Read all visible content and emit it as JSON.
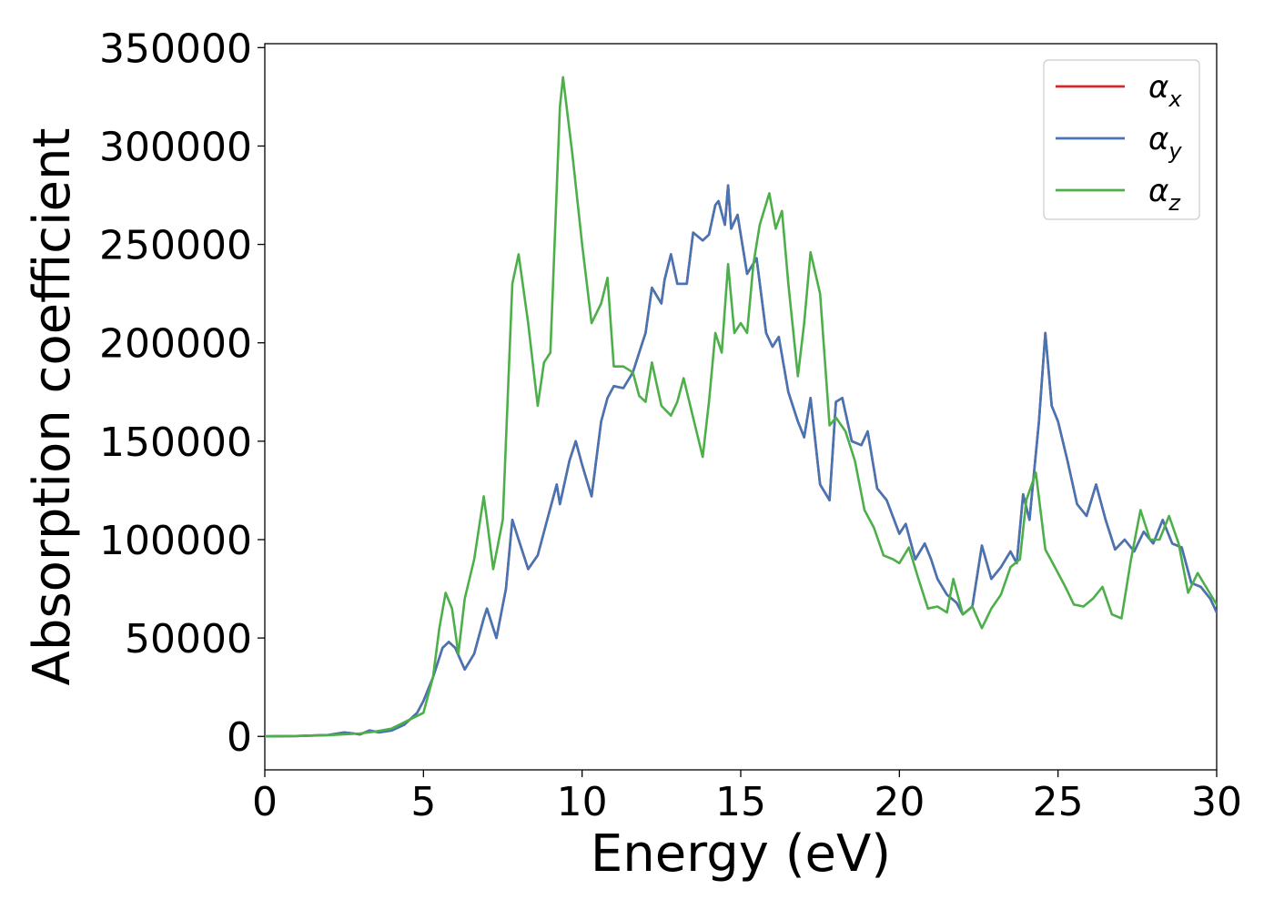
{
  "chart_data": {
    "type": "line",
    "xlabel": "Energy (eV)",
    "ylabel": "Absorption coefficient",
    "xlim": [
      0,
      30
    ],
    "ylim": [
      -17000,
      352000
    ],
    "xticks": [
      0,
      5,
      10,
      15,
      20,
      25,
      30
    ],
    "yticks": [
      0,
      50000,
      100000,
      150000,
      200000,
      250000,
      300000,
      350000
    ],
    "grid": false,
    "legend_position": "top-right",
    "series": [
      {
        "name": "α",
        "subscript": "x",
        "color": "#d62728",
        "x": [
          0,
          1,
          2,
          2.5,
          2.8,
          3.0,
          3.3,
          3.6,
          4.0,
          4.4,
          4.8,
          5.0,
          5.3,
          5.6,
          5.8,
          6.0,
          6.3,
          6.6,
          6.9,
          7.0,
          7.3,
          7.6,
          7.8,
          8.0,
          8.3,
          8.6,
          8.9,
          9.2,
          9.3,
          9.6,
          9.8,
          10.0,
          10.3,
          10.6,
          10.8,
          11.0,
          11.3,
          11.6,
          11.8,
          12.0,
          12.2,
          12.5,
          12.6,
          12.8,
          13.0,
          13.3,
          13.5,
          13.8,
          14.0,
          14.2,
          14.3,
          14.5,
          14.6,
          14.7,
          14.9,
          15.0,
          15.2,
          15.5,
          15.8,
          16.0,
          16.2,
          16.5,
          16.8,
          17.0,
          17.2,
          17.5,
          17.8,
          18.0,
          18.2,
          18.5,
          18.8,
          19.0,
          19.3,
          19.6,
          20.0,
          20.2,
          20.5,
          20.8,
          21.0,
          21.2,
          21.5,
          21.8,
          22.0,
          22.3,
          22.6,
          22.9,
          23.2,
          23.5,
          23.7,
          23.9,
          24.1,
          24.4,
          24.6,
          24.8,
          25.0,
          25.3,
          25.6,
          25.9,
          26.2,
          26.5,
          26.8,
          27.1,
          27.4,
          27.7,
          28.0,
          28.3,
          28.6,
          28.9,
          29.2,
          29.5,
          29.8,
          30.0
        ],
        "y": [
          0,
          200,
          700,
          2000,
          1500,
          1000,
          3000,
          2000,
          3000,
          6000,
          12000,
          18000,
          30000,
          45000,
          48000,
          45000,
          34000,
          42000,
          60000,
          65000,
          50000,
          75000,
          110000,
          100000,
          85000,
          92000,
          110000,
          128000,
          118000,
          140000,
          150000,
          138000,
          122000,
          160000,
          172000,
          178000,
          177000,
          185000,
          195000,
          205000,
          228000,
          220000,
          232000,
          245000,
          230000,
          230000,
          256000,
          252000,
          255000,
          270000,
          272000,
          260000,
          280000,
          258000,
          265000,
          255000,
          235000,
          243000,
          205000,
          198000,
          203000,
          175000,
          160000,
          152000,
          172000,
          128000,
          120000,
          170000,
          172000,
          150000,
          148000,
          155000,
          126000,
          120000,
          103000,
          108000,
          90000,
          98000,
          90000,
          80000,
          72000,
          68000,
          62000,
          66000,
          97000,
          80000,
          86000,
          94000,
          88000,
          123000,
          110000,
          160000,
          205000,
          168000,
          160000,
          140000,
          118000,
          112000,
          128000,
          110000,
          95000,
          100000,
          94000,
          104000,
          98000,
          110000,
          98000,
          96000,
          78000,
          76000,
          70000,
          63000
        ]
      },
      {
        "name": "α",
        "subscript": "y",
        "color": "#4575b4",
        "x": [
          0,
          1,
          2,
          2.5,
          2.8,
          3.0,
          3.3,
          3.6,
          4.0,
          4.4,
          4.8,
          5.0,
          5.3,
          5.6,
          5.8,
          6.0,
          6.3,
          6.6,
          6.9,
          7.0,
          7.3,
          7.6,
          7.8,
          8.0,
          8.3,
          8.6,
          8.9,
          9.2,
          9.3,
          9.6,
          9.8,
          10.0,
          10.3,
          10.6,
          10.8,
          11.0,
          11.3,
          11.6,
          11.8,
          12.0,
          12.2,
          12.5,
          12.6,
          12.8,
          13.0,
          13.3,
          13.5,
          13.8,
          14.0,
          14.2,
          14.3,
          14.5,
          14.6,
          14.7,
          14.9,
          15.0,
          15.2,
          15.5,
          15.8,
          16.0,
          16.2,
          16.5,
          16.8,
          17.0,
          17.2,
          17.5,
          17.8,
          18.0,
          18.2,
          18.5,
          18.8,
          19.0,
          19.3,
          19.6,
          20.0,
          20.2,
          20.5,
          20.8,
          21.0,
          21.2,
          21.5,
          21.8,
          22.0,
          22.3,
          22.6,
          22.9,
          23.2,
          23.5,
          23.7,
          23.9,
          24.1,
          24.4,
          24.6,
          24.8,
          25.0,
          25.3,
          25.6,
          25.9,
          26.2,
          26.5,
          26.8,
          27.1,
          27.4,
          27.7,
          28.0,
          28.3,
          28.6,
          28.9,
          29.2,
          29.5,
          29.8,
          30.0
        ],
        "y": [
          0,
          200,
          700,
          2000,
          1500,
          1000,
          3000,
          2000,
          3000,
          6000,
          12000,
          18000,
          30000,
          45000,
          48000,
          45000,
          34000,
          42000,
          60000,
          65000,
          50000,
          75000,
          110000,
          100000,
          85000,
          92000,
          110000,
          128000,
          118000,
          140000,
          150000,
          138000,
          122000,
          160000,
          172000,
          178000,
          177000,
          185000,
          195000,
          205000,
          228000,
          220000,
          232000,
          245000,
          230000,
          230000,
          256000,
          252000,
          255000,
          270000,
          272000,
          260000,
          280000,
          258000,
          265000,
          255000,
          235000,
          243000,
          205000,
          198000,
          203000,
          175000,
          160000,
          152000,
          172000,
          128000,
          120000,
          170000,
          172000,
          150000,
          148000,
          155000,
          126000,
          120000,
          103000,
          108000,
          90000,
          98000,
          90000,
          80000,
          72000,
          68000,
          62000,
          66000,
          97000,
          80000,
          86000,
          94000,
          88000,
          123000,
          110000,
          160000,
          205000,
          168000,
          160000,
          140000,
          118000,
          112000,
          128000,
          110000,
          95000,
          100000,
          94000,
          104000,
          98000,
          110000,
          98000,
          96000,
          78000,
          76000,
          70000,
          63000
        ]
      },
      {
        "name": "α",
        "subscript": "z",
        "color": "#4daf4a",
        "x": [
          0,
          1,
          2,
          3,
          3.5,
          4.0,
          4.5,
          5.0,
          5.3,
          5.5,
          5.7,
          5.9,
          6.1,
          6.3,
          6.6,
          6.9,
          7.0,
          7.2,
          7.5,
          7.8,
          8.0,
          8.3,
          8.6,
          8.8,
          9.0,
          9.3,
          9.4,
          9.7,
          10.0,
          10.3,
          10.6,
          10.8,
          11.0,
          11.3,
          11.6,
          11.8,
          12.0,
          12.2,
          12.5,
          12.8,
          13.0,
          13.2,
          13.5,
          13.8,
          14.0,
          14.2,
          14.4,
          14.6,
          14.8,
          15.0,
          15.2,
          15.4,
          15.6,
          15.9,
          16.1,
          16.3,
          16.5,
          16.8,
          17.0,
          17.2,
          17.5,
          17.8,
          18.0,
          18.3,
          18.6,
          18.9,
          19.2,
          19.5,
          19.8,
          20.0,
          20.3,
          20.6,
          20.9,
          21.2,
          21.5,
          21.7,
          22.0,
          22.3,
          22.6,
          22.9,
          23.2,
          23.5,
          23.8,
          24.0,
          24.3,
          24.6,
          24.9,
          25.2,
          25.5,
          25.8,
          26.1,
          26.4,
          26.7,
          27.0,
          27.3,
          27.6,
          27.9,
          28.2,
          28.5,
          28.8,
          29.1,
          29.4,
          29.7,
          30.0
        ],
        "y": [
          0,
          200,
          600,
          1500,
          2500,
          4000,
          8000,
          12000,
          30000,
          55000,
          73000,
          65000,
          42000,
          70000,
          90000,
          122000,
          110000,
          85000,
          110000,
          230000,
          245000,
          210000,
          168000,
          190000,
          195000,
          320000,
          335000,
          295000,
          250000,
          210000,
          220000,
          233000,
          188000,
          188000,
          185000,
          173000,
          170000,
          190000,
          168000,
          163000,
          170000,
          182000,
          162000,
          142000,
          170000,
          205000,
          195000,
          240000,
          205000,
          210000,
          205000,
          240000,
          260000,
          276000,
          258000,
          267000,
          230000,
          183000,
          210000,
          246000,
          225000,
          158000,
          162000,
          155000,
          140000,
          115000,
          106000,
          92000,
          90000,
          88000,
          96000,
          80000,
          65000,
          66000,
          63000,
          80000,
          62000,
          66000,
          55000,
          65000,
          72000,
          86000,
          90000,
          120000,
          134000,
          95000,
          86000,
          77000,
          67000,
          66000,
          70000,
          76000,
          62000,
          60000,
          90000,
          115000,
          100000,
          100000,
          112000,
          98000,
          73000,
          83000,
          75000,
          67000
        ]
      }
    ]
  }
}
